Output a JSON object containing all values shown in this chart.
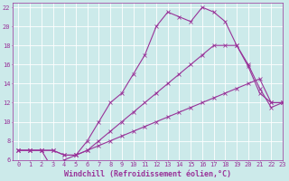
{
  "background_color": "#cceaea",
  "grid_color": "#ffffff",
  "line_color": "#993399",
  "xlabel": "Windchill (Refroidissement éolien,°C)",
  "xlim": [
    -0.5,
    23
  ],
  "ylim": [
    6,
    22.5
  ],
  "yticks": [
    6,
    8,
    10,
    12,
    14,
    16,
    18,
    20,
    22
  ],
  "xticks": [
    0,
    1,
    2,
    3,
    4,
    5,
    6,
    7,
    8,
    9,
    10,
    11,
    12,
    13,
    14,
    15,
    16,
    17,
    18,
    19,
    20,
    21,
    22,
    23
  ],
  "series1_x": [
    0,
    1,
    2,
    3,
    4,
    5,
    6,
    7,
    8,
    9,
    10,
    11,
    12,
    13,
    14,
    15,
    16,
    17,
    18,
    19,
    20,
    21,
    22,
    23
  ],
  "series1_y": [
    7,
    7,
    7,
    7,
    6.5,
    6.5,
    7,
    7.5,
    8,
    8.5,
    9,
    9.5,
    10,
    10.5,
    11,
    11.5,
    12,
    12.5,
    13,
    13.5,
    14,
    14.5,
    12,
    12
  ],
  "series2_x": [
    0,
    1,
    2,
    3,
    4,
    5,
    6,
    7,
    8,
    9,
    10,
    11,
    12,
    13,
    14,
    15,
    16,
    17,
    18,
    19,
    20,
    21,
    22,
    23
  ],
  "series2_y": [
    7,
    7,
    7,
    7,
    6.5,
    6.5,
    7,
    8,
    9,
    10,
    11,
    12,
    13,
    14,
    15,
    16,
    17,
    18,
    18,
    18,
    15.8,
    13,
    12,
    12
  ],
  "series3_x": [
    0,
    1,
    2,
    3,
    4,
    5,
    6,
    7,
    8,
    9,
    10,
    11,
    12,
    13,
    14,
    15,
    16,
    17,
    18,
    19,
    20,
    21,
    22,
    23
  ],
  "series3_y": [
    7,
    7,
    7,
    5,
    6,
    6.5,
    8,
    10,
    12,
    13,
    15,
    17,
    20,
    21.5,
    21,
    20.5,
    22,
    21.5,
    20.5,
    18,
    16,
    13.5,
    11.5,
    12
  ],
  "xlabel_fontsize": 6,
  "tick_fontsize": 5,
  "linewidth": 0.8,
  "marker": "+",
  "markersize": 3
}
